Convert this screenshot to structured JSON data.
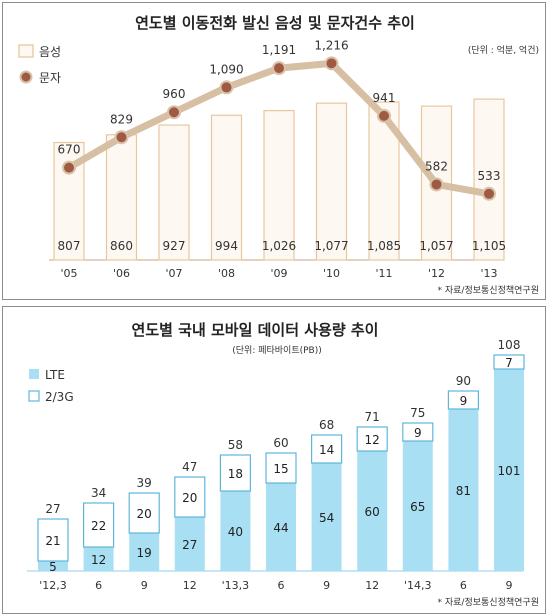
{
  "chart_data": [
    {
      "type": "bar",
      "title": "연도별 이동전화 발신 음성 및 문자건수 추이",
      "unit": "(단위 : 억분, 억건)",
      "source": "* 자료/정보통신정책연구원",
      "categories": [
        "'05",
        "'06",
        "'07",
        "'08",
        "'09",
        "'10",
        "'11",
        "'12",
        "'13"
      ],
      "series": [
        {
          "name": "음성",
          "type": "bar",
          "values": [
            807,
            860,
            927,
            994,
            1026,
            1077,
            1085,
            1057,
            1105
          ],
          "labels": [
            "807",
            "860",
            "927",
            "994",
            "1,026",
            "1,077",
            "1,085",
            "1,057",
            "1,105"
          ]
        },
        {
          "name": "문자",
          "type": "line",
          "values": [
            670,
            829,
            960,
            1090,
            1191,
            1216,
            941,
            582,
            533
          ],
          "labels": [
            "670",
            "829",
            "960",
            "1,090",
            "1,191",
            "1,216",
            "941",
            "582",
            "533"
          ]
        }
      ],
      "colors": {
        "bar_fill": "#fdf8f2",
        "bar_stroke": "#e8c79e",
        "line": "#d7bfa3",
        "marker": "#9e5a42"
      }
    },
    {
      "type": "bar",
      "stacked": true,
      "title": "연도별 국내 모바일 데이터 사용량 추이",
      "unit": "(단위: 페타바이트(PB))",
      "source": "* 자료/정보통신정책연구원",
      "categories": [
        "'12,3",
        "6",
        "9",
        "12",
        "'13,3",
        "6",
        "9",
        "12",
        "'14,3",
        "6",
        "9"
      ],
      "series": [
        {
          "name": "LTE",
          "values": [
            5,
            12,
            19,
            27,
            40,
            44,
            54,
            60,
            65,
            81,
            101
          ]
        },
        {
          "name": "2/3G",
          "values": [
            21,
            22,
            20,
            20,
            18,
            15,
            14,
            12,
            9,
            9,
            7
          ]
        }
      ],
      "totals": [
        27,
        34,
        39,
        47,
        58,
        60,
        68,
        71,
        75,
        90,
        108
      ],
      "colors": {
        "lte": "#a9dff3",
        "g3": "#ffffff",
        "g3_stroke": "#5fb6db"
      }
    }
  ]
}
